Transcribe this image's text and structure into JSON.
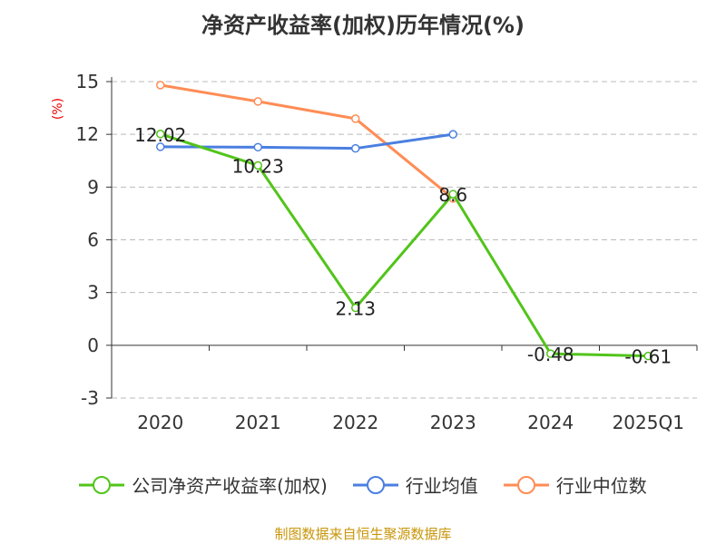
{
  "chart_data": {
    "type": "line",
    "title": "净资产收益率(加权)历年情况(%)",
    "ylabel": "(%)",
    "xlabel": "",
    "categories": [
      "2020",
      "2021",
      "2022",
      "2023",
      "2024",
      "2025Q1"
    ],
    "ylim": [
      -3,
      15
    ],
    "yticks": [
      -3,
      0,
      3,
      6,
      9,
      12,
      15
    ],
    "grid": true,
    "legend_position": "bottom",
    "series": [
      {
        "name": "公司净资产收益率(加权)",
        "color": "#52c41a",
        "values": [
          12.02,
          10.23,
          2.13,
          8.6,
          -0.48,
          -0.61
        ],
        "labels": [
          "12.02",
          "10.23",
          "2.13",
          "8.6",
          "-0.48",
          "-0.61"
        ]
      },
      {
        "name": "行业均值",
        "color": "#4a7fe0",
        "values": [
          11.29,
          11.27,
          11.2,
          12.0,
          null,
          null
        ]
      },
      {
        "name": "行业中位数",
        "color": "#ff8c55",
        "values": [
          14.8,
          13.87,
          12.89,
          8.35,
          null,
          null
        ]
      }
    ]
  },
  "footer": "制图数据来自恒生聚源数据库"
}
